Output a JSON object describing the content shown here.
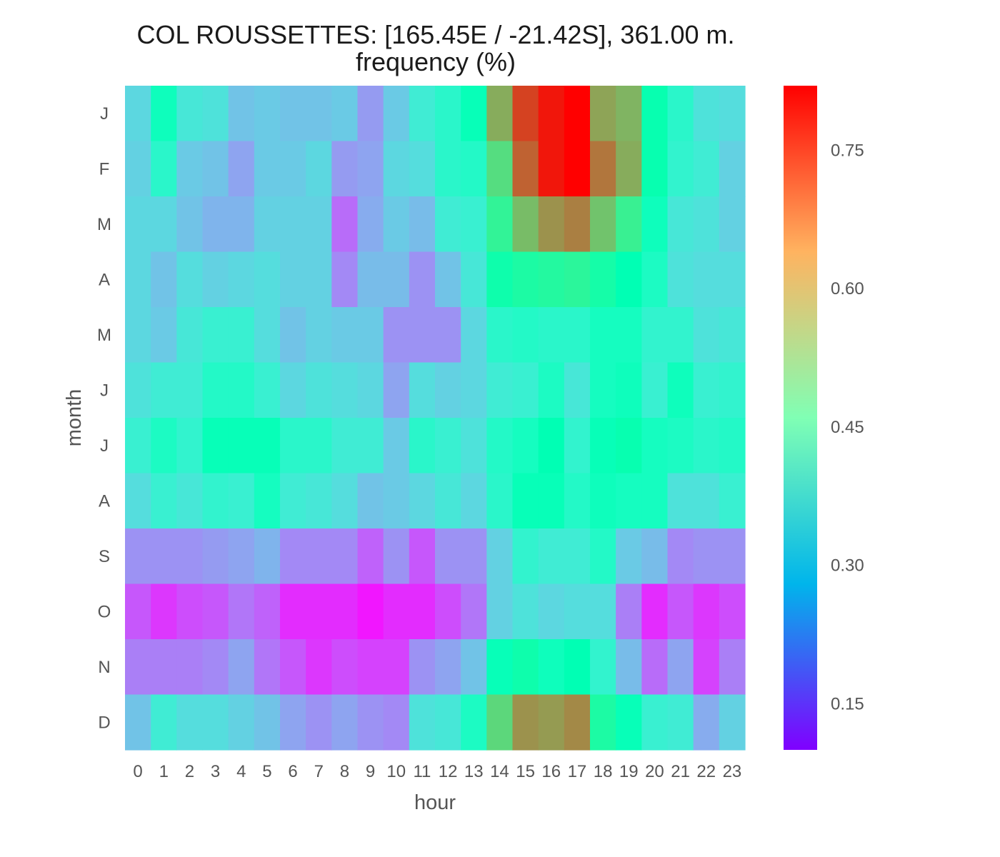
{
  "chart_data": {
    "type": "heatmap",
    "title": "COL ROUSSETTES: [165.45E / -21.42S], 361.00 m.",
    "subtitle": "frequency (%)",
    "xlabel": "hour",
    "ylabel": "month",
    "x": [
      "0",
      "1",
      "2",
      "3",
      "4",
      "5",
      "6",
      "7",
      "8",
      "9",
      "10",
      "11",
      "12",
      "13",
      "14",
      "15",
      "16",
      "17",
      "18",
      "19",
      "20",
      "21",
      "22",
      "23"
    ],
    "y": [
      "J",
      "F",
      "M",
      "A",
      "M",
      "J",
      "J",
      "A",
      "S",
      "O",
      "N",
      "D"
    ],
    "values": [
      [
        0.33,
        0.44,
        0.36,
        0.35,
        0.3,
        0.31,
        0.3,
        0.3,
        0.31,
        0.25,
        0.31,
        0.37,
        0.4,
        0.45,
        0.65,
        0.76,
        0.8,
        0.82,
        0.66,
        0.64,
        0.47,
        0.4,
        0.35,
        0.34
      ],
      [
        0.32,
        0.4,
        0.31,
        0.3,
        0.26,
        0.31,
        0.31,
        0.33,
        0.25,
        0.26,
        0.33,
        0.34,
        0.4,
        0.41,
        0.58,
        0.73,
        0.8,
        0.82,
        0.71,
        0.65,
        0.47,
        0.39,
        0.37,
        0.32
      ],
      [
        0.33,
        0.33,
        0.3,
        0.28,
        0.28,
        0.32,
        0.32,
        0.32,
        0.2,
        0.27,
        0.31,
        0.29,
        0.37,
        0.38,
        0.53,
        0.63,
        0.68,
        0.7,
        0.62,
        0.54,
        0.44,
        0.36,
        0.35,
        0.32
      ],
      [
        0.33,
        0.3,
        0.34,
        0.32,
        0.33,
        0.34,
        0.32,
        0.32,
        0.23,
        0.29,
        0.29,
        0.24,
        0.3,
        0.36,
        0.48,
        0.5,
        0.51,
        0.52,
        0.49,
        0.46,
        0.42,
        0.35,
        0.34,
        0.34
      ],
      [
        0.33,
        0.31,
        0.36,
        0.38,
        0.38,
        0.34,
        0.3,
        0.32,
        0.31,
        0.31,
        0.24,
        0.24,
        0.24,
        0.33,
        0.4,
        0.41,
        0.4,
        0.4,
        0.43,
        0.43,
        0.39,
        0.39,
        0.35,
        0.36
      ],
      [
        0.35,
        0.37,
        0.37,
        0.41,
        0.41,
        0.38,
        0.33,
        0.35,
        0.34,
        0.33,
        0.26,
        0.34,
        0.32,
        0.33,
        0.37,
        0.38,
        0.42,
        0.36,
        0.43,
        0.44,
        0.38,
        0.44,
        0.38,
        0.39
      ],
      [
        0.38,
        0.42,
        0.39,
        0.45,
        0.45,
        0.45,
        0.4,
        0.4,
        0.37,
        0.37,
        0.31,
        0.4,
        0.38,
        0.35,
        0.41,
        0.43,
        0.46,
        0.39,
        0.45,
        0.47,
        0.43,
        0.42,
        0.4,
        0.41
      ],
      [
        0.34,
        0.38,
        0.36,
        0.39,
        0.38,
        0.43,
        0.37,
        0.36,
        0.34,
        0.3,
        0.31,
        0.33,
        0.36,
        0.33,
        0.4,
        0.45,
        0.45,
        0.41,
        0.44,
        0.43,
        0.43,
        0.35,
        0.35,
        0.38
      ],
      [
        0.24,
        0.24,
        0.24,
        0.25,
        0.26,
        0.28,
        0.23,
        0.23,
        0.23,
        0.19,
        0.24,
        0.18,
        0.24,
        0.24,
        0.32,
        0.39,
        0.37,
        0.37,
        0.41,
        0.31,
        0.29,
        0.23,
        0.24,
        0.24
      ],
      [
        0.18,
        0.15,
        0.17,
        0.18,
        0.21,
        0.19,
        0.14,
        0.14,
        0.14,
        0.12,
        0.14,
        0.14,
        0.17,
        0.21,
        0.32,
        0.35,
        0.33,
        0.34,
        0.34,
        0.22,
        0.14,
        0.18,
        0.15,
        0.17
      ],
      [
        0.22,
        0.22,
        0.22,
        0.23,
        0.26,
        0.21,
        0.18,
        0.15,
        0.17,
        0.16,
        0.16,
        0.24,
        0.26,
        0.3,
        0.45,
        0.48,
        0.44,
        0.46,
        0.39,
        0.29,
        0.2,
        0.26,
        0.16,
        0.22
      ],
      [
        0.3,
        0.37,
        0.34,
        0.34,
        0.32,
        0.3,
        0.26,
        0.24,
        0.26,
        0.24,
        0.23,
        0.35,
        0.36,
        0.42,
        0.59,
        0.68,
        0.67,
        0.69,
        0.5,
        0.45,
        0.38,
        0.37,
        0.27,
        0.32
      ]
    ],
    "colorbar": {
      "min": 0.1,
      "max": 0.82,
      "ticks": [
        "0.15",
        "0.30",
        "0.45",
        "0.60",
        "0.75"
      ],
      "colormap": "rainbow"
    },
    "grid": false
  }
}
